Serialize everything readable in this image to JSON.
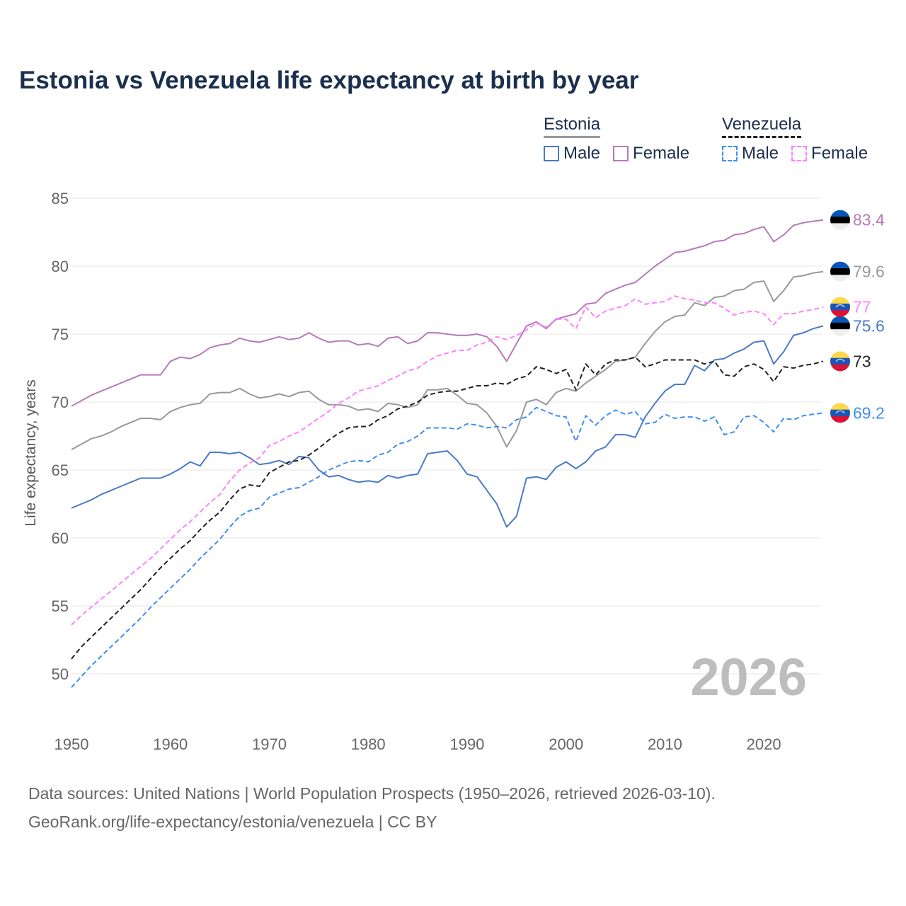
{
  "chart_data": {
    "type": "line",
    "title": "Estonia vs Venezuela life expectancy at birth by year",
    "xlabel": "",
    "ylabel": "Life expectancy, years",
    "xlim": [
      1950,
      2026
    ],
    "ylim": [
      50,
      85
    ],
    "yticks": [
      50,
      55,
      60,
      65,
      70,
      75,
      80,
      85
    ],
    "xticks": [
      1950,
      1960,
      1970,
      1980,
      1990,
      2000,
      2010,
      2020
    ],
    "grid": true,
    "legend_position": "top-right",
    "watermark": "2026",
    "x_start": 1950,
    "series": [
      {
        "key": "est_f",
        "country": "Estonia",
        "name": "Female",
        "color": "#b77bb8",
        "dashed": false,
        "flag": "estonia",
        "end_label": "83.4",
        "values": [
          69.7,
          70.1,
          70.5,
          70.8,
          71.1,
          71.4,
          71.7,
          72.0,
          72.0,
          72.0,
          73.0,
          73.3,
          73.2,
          73.5,
          74.0,
          74.2,
          74.3,
          74.7,
          74.5,
          74.4,
          74.6,
          74.8,
          74.6,
          74.7,
          75.1,
          74.7,
          74.4,
          74.5,
          74.5,
          74.2,
          74.3,
          74.1,
          74.7,
          74.8,
          74.3,
          74.5,
          75.1,
          75.1,
          75.0,
          74.9,
          74.9,
          75.0,
          74.8,
          74.1,
          73.0,
          74.3,
          75.6,
          75.9,
          75.4,
          76.1,
          76.3,
          76.5,
          77.2,
          77.3,
          78.0,
          78.3,
          78.6,
          78.8,
          79.4,
          80.0,
          80.5,
          81.0,
          81.1,
          81.3,
          81.5,
          81.8,
          81.9,
          82.3,
          82.4,
          82.7,
          82.9,
          81.8,
          82.3,
          83.0,
          83.2,
          83.3,
          83.4
        ]
      },
      {
        "key": "est_t",
        "country": "Estonia",
        "name": "Total",
        "color": "#999999",
        "dashed": false,
        "flag": "estonia",
        "end_label": "79.6",
        "values": [
          66.5,
          66.9,
          67.3,
          67.5,
          67.8,
          68.2,
          68.5,
          68.8,
          68.8,
          68.7,
          69.3,
          69.6,
          69.8,
          69.9,
          70.6,
          70.7,
          70.7,
          71.0,
          70.6,
          70.3,
          70.4,
          70.6,
          70.4,
          70.7,
          70.8,
          70.2,
          69.8,
          69.8,
          69.7,
          69.4,
          69.5,
          69.3,
          69.9,
          69.8,
          69.6,
          69.8,
          70.9,
          70.9,
          71.0,
          70.5,
          69.9,
          69.8,
          69.2,
          68.2,
          66.7,
          67.9,
          70.0,
          70.2,
          69.8,
          70.7,
          71.0,
          70.8,
          71.4,
          71.9,
          72.4,
          73.0,
          73.1,
          73.3,
          74.3,
          75.2,
          75.9,
          76.3,
          76.4,
          77.3,
          77.1,
          77.7,
          77.8,
          78.2,
          78.3,
          78.8,
          78.9,
          77.4,
          78.2,
          79.2,
          79.3,
          79.5,
          79.6
        ]
      },
      {
        "key": "est_m",
        "country": "Estonia",
        "name": "Male",
        "color": "#4a7ac7",
        "dashed": false,
        "flag": "estonia",
        "end_label": "75.6",
        "values": [
          62.2,
          62.5,
          62.8,
          63.2,
          63.5,
          63.8,
          64.1,
          64.4,
          64.4,
          64.4,
          64.7,
          65.1,
          65.6,
          65.3,
          66.3,
          66.3,
          66.2,
          66.3,
          65.9,
          65.4,
          65.5,
          65.7,
          65.4,
          66.0,
          65.9,
          65.0,
          64.5,
          64.6,
          64.3,
          64.1,
          64.2,
          64.1,
          64.6,
          64.4,
          64.6,
          64.7,
          66.2,
          66.3,
          66.4,
          65.7,
          64.7,
          64.5,
          63.5,
          62.5,
          60.8,
          61.6,
          64.4,
          64.5,
          64.3,
          65.2,
          65.6,
          65.1,
          65.6,
          66.4,
          66.7,
          67.6,
          67.6,
          67.4,
          68.9,
          69.9,
          70.8,
          71.3,
          71.3,
          72.7,
          72.3,
          73.1,
          73.2,
          73.6,
          73.9,
          74.4,
          74.5,
          72.8,
          73.7,
          74.9,
          75.1,
          75.4,
          75.6
        ]
      },
      {
        "key": "ven_f",
        "country": "Venezuela",
        "name": "Female",
        "color": "#ff80ff",
        "dashed": true,
        "flag": "venezuela",
        "end_label": "77",
        "values": [
          53.6,
          54.3,
          54.9,
          55.5,
          56.1,
          56.7,
          57.3,
          57.9,
          58.5,
          59.2,
          59.9,
          60.6,
          61.2,
          61.9,
          62.6,
          63.2,
          64.2,
          65.0,
          65.5,
          65.9,
          66.8,
          67.1,
          67.5,
          67.8,
          68.3,
          68.8,
          69.3,
          69.9,
          70.3,
          70.8,
          71.0,
          71.2,
          71.6,
          71.9,
          72.3,
          72.5,
          73.0,
          73.4,
          73.6,
          73.8,
          73.8,
          74.2,
          74.4,
          74.8,
          74.6,
          74.9,
          75.3,
          75.8,
          75.5,
          76.1,
          76.1,
          75.4,
          77.0,
          76.2,
          76.7,
          76.9,
          77.1,
          77.6,
          77.2,
          77.3,
          77.4,
          77.8,
          77.6,
          77.5,
          77.3,
          77.3,
          76.9,
          76.4,
          76.6,
          76.7,
          76.5,
          75.7,
          76.5,
          76.5,
          76.7,
          76.8,
          77.0
        ]
      },
      {
        "key": "ven_t",
        "country": "Venezuela",
        "name": "Total",
        "color": "#222222",
        "dashed": true,
        "flag": "venezuela",
        "end_label": "73",
        "values": [
          51.1,
          52.0,
          52.7,
          53.4,
          54.1,
          54.8,
          55.5,
          56.2,
          57.0,
          57.8,
          58.5,
          59.2,
          59.8,
          60.6,
          61.3,
          61.9,
          62.8,
          63.6,
          63.9,
          63.8,
          64.8,
          65.2,
          65.6,
          65.7,
          66.1,
          66.6,
          67.2,
          67.7,
          68.1,
          68.2,
          68.2,
          68.7,
          69.0,
          69.5,
          69.7,
          70.0,
          70.5,
          70.7,
          70.8,
          70.8,
          71.0,
          71.2,
          71.2,
          71.4,
          71.3,
          71.7,
          71.9,
          72.6,
          72.4,
          72.1,
          72.4,
          70.9,
          72.8,
          72.0,
          72.8,
          73.1,
          73.1,
          73.3,
          72.6,
          72.8,
          73.1,
          73.1,
          73.1,
          73.1,
          72.8,
          73.0,
          72.0,
          71.9,
          72.6,
          72.8,
          72.4,
          71.5,
          72.6,
          72.5,
          72.7,
          72.8,
          73.0
        ]
      },
      {
        "key": "ven_m",
        "country": "Venezuela",
        "name": "Male",
        "color": "#3f8ef5",
        "dashed": true,
        "flag": "venezuela",
        "end_label": "69.2",
        "values": [
          49.0,
          49.8,
          50.6,
          51.3,
          52.0,
          52.7,
          53.4,
          54.1,
          54.9,
          55.6,
          56.3,
          57.0,
          57.7,
          58.5,
          59.2,
          59.9,
          60.8,
          61.6,
          62.0,
          62.2,
          63.0,
          63.3,
          63.6,
          63.7,
          64.1,
          64.5,
          65.0,
          65.3,
          65.6,
          65.7,
          65.6,
          66.1,
          66.3,
          66.9,
          67.1,
          67.5,
          68.1,
          68.1,
          68.1,
          68.0,
          68.4,
          68.3,
          68.1,
          68.2,
          68.1,
          68.7,
          68.9,
          69.6,
          69.3,
          69.0,
          68.9,
          67.1,
          69.0,
          68.3,
          69.0,
          69.4,
          69.1,
          69.3,
          68.4,
          68.5,
          69.1,
          68.8,
          68.9,
          68.9,
          68.6,
          68.9,
          67.6,
          67.8,
          68.9,
          69.0,
          68.5,
          67.8,
          68.8,
          68.7,
          69.0,
          69.1,
          69.2
        ]
      }
    ]
  },
  "legend": {
    "estonia": {
      "label": "Estonia",
      "color": "#999999",
      "male": "Male",
      "female": "Female",
      "male_color": "#4a7ac7",
      "female_color": "#b77bb8"
    },
    "venezuela": {
      "label": "Venezuela",
      "color": "#222222",
      "male": "Male",
      "female": "Female",
      "male_color": "#3f8ef5",
      "female_color": "#ff80ff"
    }
  },
  "footer": {
    "line1": "Data sources: United Nations | World Population Prospects (1950–2026, retrieved 2026-03-10).",
    "line2": "GeoRank.org/life-expectancy/estonia/venezuela | CC BY"
  }
}
